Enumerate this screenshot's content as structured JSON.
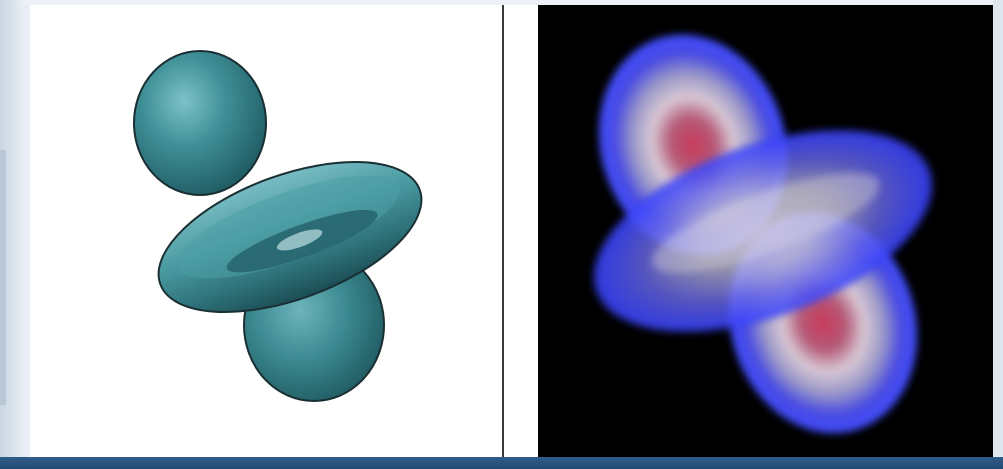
{
  "figure": {
    "left_panel": {
      "subject": "orbital-isosurface",
      "surface_color": "#3f8f97",
      "background": "#ffffff"
    },
    "right_panel": {
      "subject": "orbital-volume-rendering",
      "outer_color": "#3d4cff",
      "inner_color": "#d8c8d4",
      "core_color": "#c83a5a",
      "background": "#000000"
    },
    "frame": {
      "bar_color": "#2a5480"
    }
  }
}
